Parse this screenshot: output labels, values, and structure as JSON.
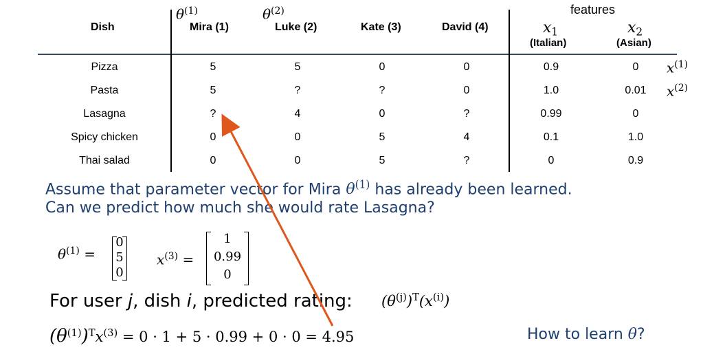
{
  "table": {
    "features_label": "features",
    "headers": {
      "dish": "Dish",
      "mira": "Mira (1)",
      "luke": "Luke (2)",
      "kate": "Kate (3)",
      "david": "David (4)",
      "x1": "x",
      "x1_sub": "1",
      "x1_name": "(Italian)",
      "x2": "x",
      "x2_sub": "2",
      "x2_name": "(Asian)",
      "theta1": "θ",
      "theta1_sup": "(1)",
      "theta2": "θ",
      "theta2_sup": "(2)"
    },
    "rows": [
      {
        "dish": "Pizza",
        "mira": "5",
        "luke": "5",
        "kate": "0",
        "david": "0",
        "x1": "0.9",
        "x2": "0",
        "label": "x",
        "label_sup": "(1)"
      },
      {
        "dish": "Pasta",
        "mira": "5",
        "luke": "?",
        "kate": "?",
        "david": "0",
        "x1": "1.0",
        "x2": "0.01",
        "label": "x",
        "label_sup": "(2)"
      },
      {
        "dish": "Lasagna",
        "mira": "?",
        "luke": "4",
        "kate": "0",
        "david": "?",
        "x1": "0.99",
        "x2": "0",
        "label": "",
        "label_sup": ""
      },
      {
        "dish": "Spicy chicken",
        "mira": "0",
        "luke": "0",
        "kate": "5",
        "david": "4",
        "x1": "0.1",
        "x2": "1.0",
        "label": "",
        "label_sup": ""
      },
      {
        "dish": "Thai salad",
        "mira": "0",
        "luke": "0",
        "kate": "5",
        "david": "?",
        "x1": "0",
        "x2": "0.9",
        "label": "",
        "label_sup": ""
      }
    ]
  },
  "text": {
    "assume_line1_a": "Assume that parameter vector for Mira ",
    "assume_theta": "θ",
    "assume_theta_sup": "(1)",
    "assume_line1_b": " has already been learned.",
    "assume_line2": "Can we predict how much she would rate Lasagna?"
  },
  "vectors": {
    "theta_lhs": "θ",
    "theta_sup": "(1)",
    "eq": "=",
    "theta_values": [
      "0",
      "5",
      "0"
    ],
    "x_lhs": "x",
    "x_sup": "(3)",
    "x_values": [
      "1",
      "0.99",
      "0"
    ]
  },
  "prediction": {
    "label_a": "For user ",
    "label_j": "j",
    "label_b": ", dish ",
    "label_i": "i",
    "label_c": ", predicted rating:",
    "formula": "(θ",
    "formula_sup1": "(j)",
    "formula_mid": ")",
    "formula_T": "T",
    "formula_x": "(x",
    "formula_sup2": "(i)",
    "formula_end": ")"
  },
  "computation": {
    "lhs_open": "(θ",
    "lhs_sup": "(1)",
    "lhs_close": ")",
    "lhs_T": "T",
    "lhs_x": "x",
    "lhs_xsup": "(3)",
    "rhs": " = 0 · 1 + 5 · 0.99 + 0 · 0 = 4.95"
  },
  "question": {
    "text_a": "How to learn ",
    "theta": "θ",
    "text_b": "?"
  },
  "colors": {
    "arrow": "#e0571d",
    "text_blue": "#1f3f6e"
  }
}
